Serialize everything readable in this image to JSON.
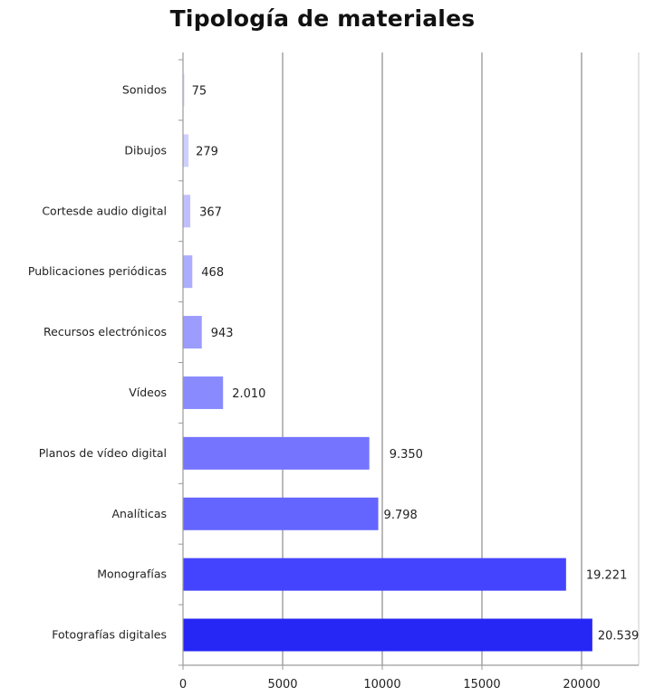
{
  "chart_data": {
    "type": "bar",
    "orientation": "horizontal",
    "title": "Tipología de materiales",
    "xlabel": "",
    "ylabel": "",
    "categories": [
      "Sonidos",
      "Dibujos",
      "Cortesde audio digital",
      "Publicaciones periódicas",
      "Recursos electrónicos",
      "Vídeos",
      "Planos de vídeo digital",
      "Analíticas",
      "Monografías",
      "Fotografías digitales"
    ],
    "values": [
      75,
      279,
      367,
      468,
      943,
      2010,
      9350,
      9798,
      19221,
      20539
    ],
    "value_labels": [
      "75",
      "279",
      "367",
      "468",
      "943",
      "2.010",
      "9.350",
      "9.798",
      "19.221",
      "20.539"
    ],
    "xlim": [
      0,
      23000
    ],
    "xticks": [
      0,
      5000,
      10000,
      15000,
      20000
    ],
    "xtick_labels": [
      "0",
      "5000",
      "10000",
      "15000",
      "20000"
    ],
    "grid": "vertical",
    "legend": "none",
    "bar_colors": [
      "#e0e0ff",
      "#cfcfff",
      "#bfbfff",
      "#adadff",
      "#9c9cff",
      "#8a8aff",
      "#7474ff",
      "#6464ff",
      "#4444ff",
      "#2626f5"
    ]
  }
}
